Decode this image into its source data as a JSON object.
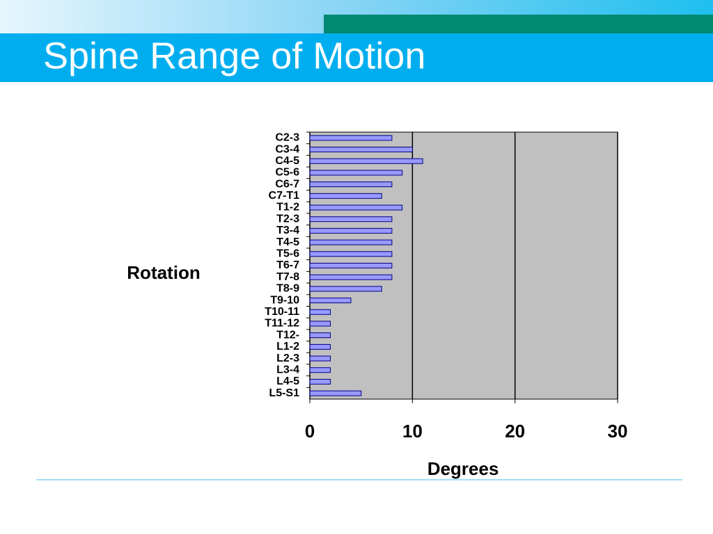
{
  "chart_data": {
    "type": "bar",
    "orientation": "horizontal",
    "title": "Spine Range of Motion",
    "y_label": "Rotation",
    "x_label": "Degrees",
    "categories": [
      "C2-3",
      "C3-4",
      "C4-5",
      "C5-6",
      "C6-7",
      "C7-T1",
      "T1-2",
      "T2-3",
      "T3-4",
      "T4-5",
      "T5-6",
      "T6-7",
      "T7-8",
      "T8-9",
      "T9-10",
      "T10-11",
      "T11-12",
      "T12-",
      "L1-2",
      "L2-3",
      "L3-4",
      "L4-5",
      "L5-S1"
    ],
    "values": [
      8,
      10,
      11,
      9,
      8,
      7,
      9,
      8,
      8,
      8,
      8,
      8,
      8,
      7,
      4,
      2,
      2,
      2,
      2,
      2,
      2,
      2,
      5
    ],
    "color": "#9999ff",
    "xlim": [
      0,
      30
    ],
    "xticks": [
      0,
      10,
      20,
      30
    ],
    "grid": true
  }
}
